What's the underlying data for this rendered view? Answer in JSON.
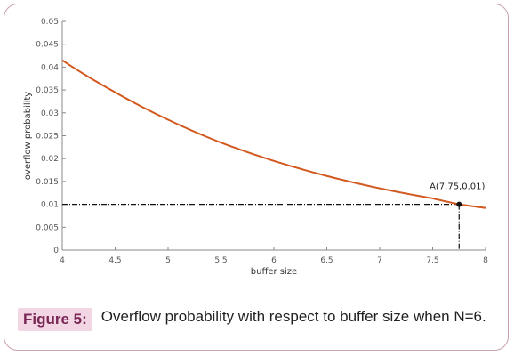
{
  "chart_data": {
    "type": "line",
    "xlabel": "buffer size",
    "ylabel": "overflow probability",
    "xlim": [
      4,
      8
    ],
    "ylim": [
      0,
      0.05
    ],
    "x_ticks": [
      "4",
      "4.5",
      "5",
      "5.5",
      "6",
      "6.5",
      "7",
      "7.5",
      "8"
    ],
    "y_ticks": [
      "0",
      "0.005",
      "0.01",
      "0.015",
      "0.02",
      "0.025",
      "0.03",
      "0.035",
      "0.04",
      "0.045",
      "0.05"
    ],
    "grid": false,
    "series": [
      {
        "color": "#d2591f",
        "x": [
          4,
          4.5,
          5,
          5.5,
          6,
          6.5,
          7,
          7.5,
          7.75,
          8
        ],
        "y": [
          0.0415,
          0.0345,
          0.0285,
          0.0235,
          0.0195,
          0.0162,
          0.0135,
          0.0113,
          0.01,
          0.0092
        ]
      }
    ],
    "annotation": {
      "x": 7.75,
      "y": 0.01,
      "label": "A(7.75,0.01)"
    }
  },
  "caption": {
    "label": "Figure 5:",
    "text": "Overflow probability with respect to buffer size when N=6."
  }
}
